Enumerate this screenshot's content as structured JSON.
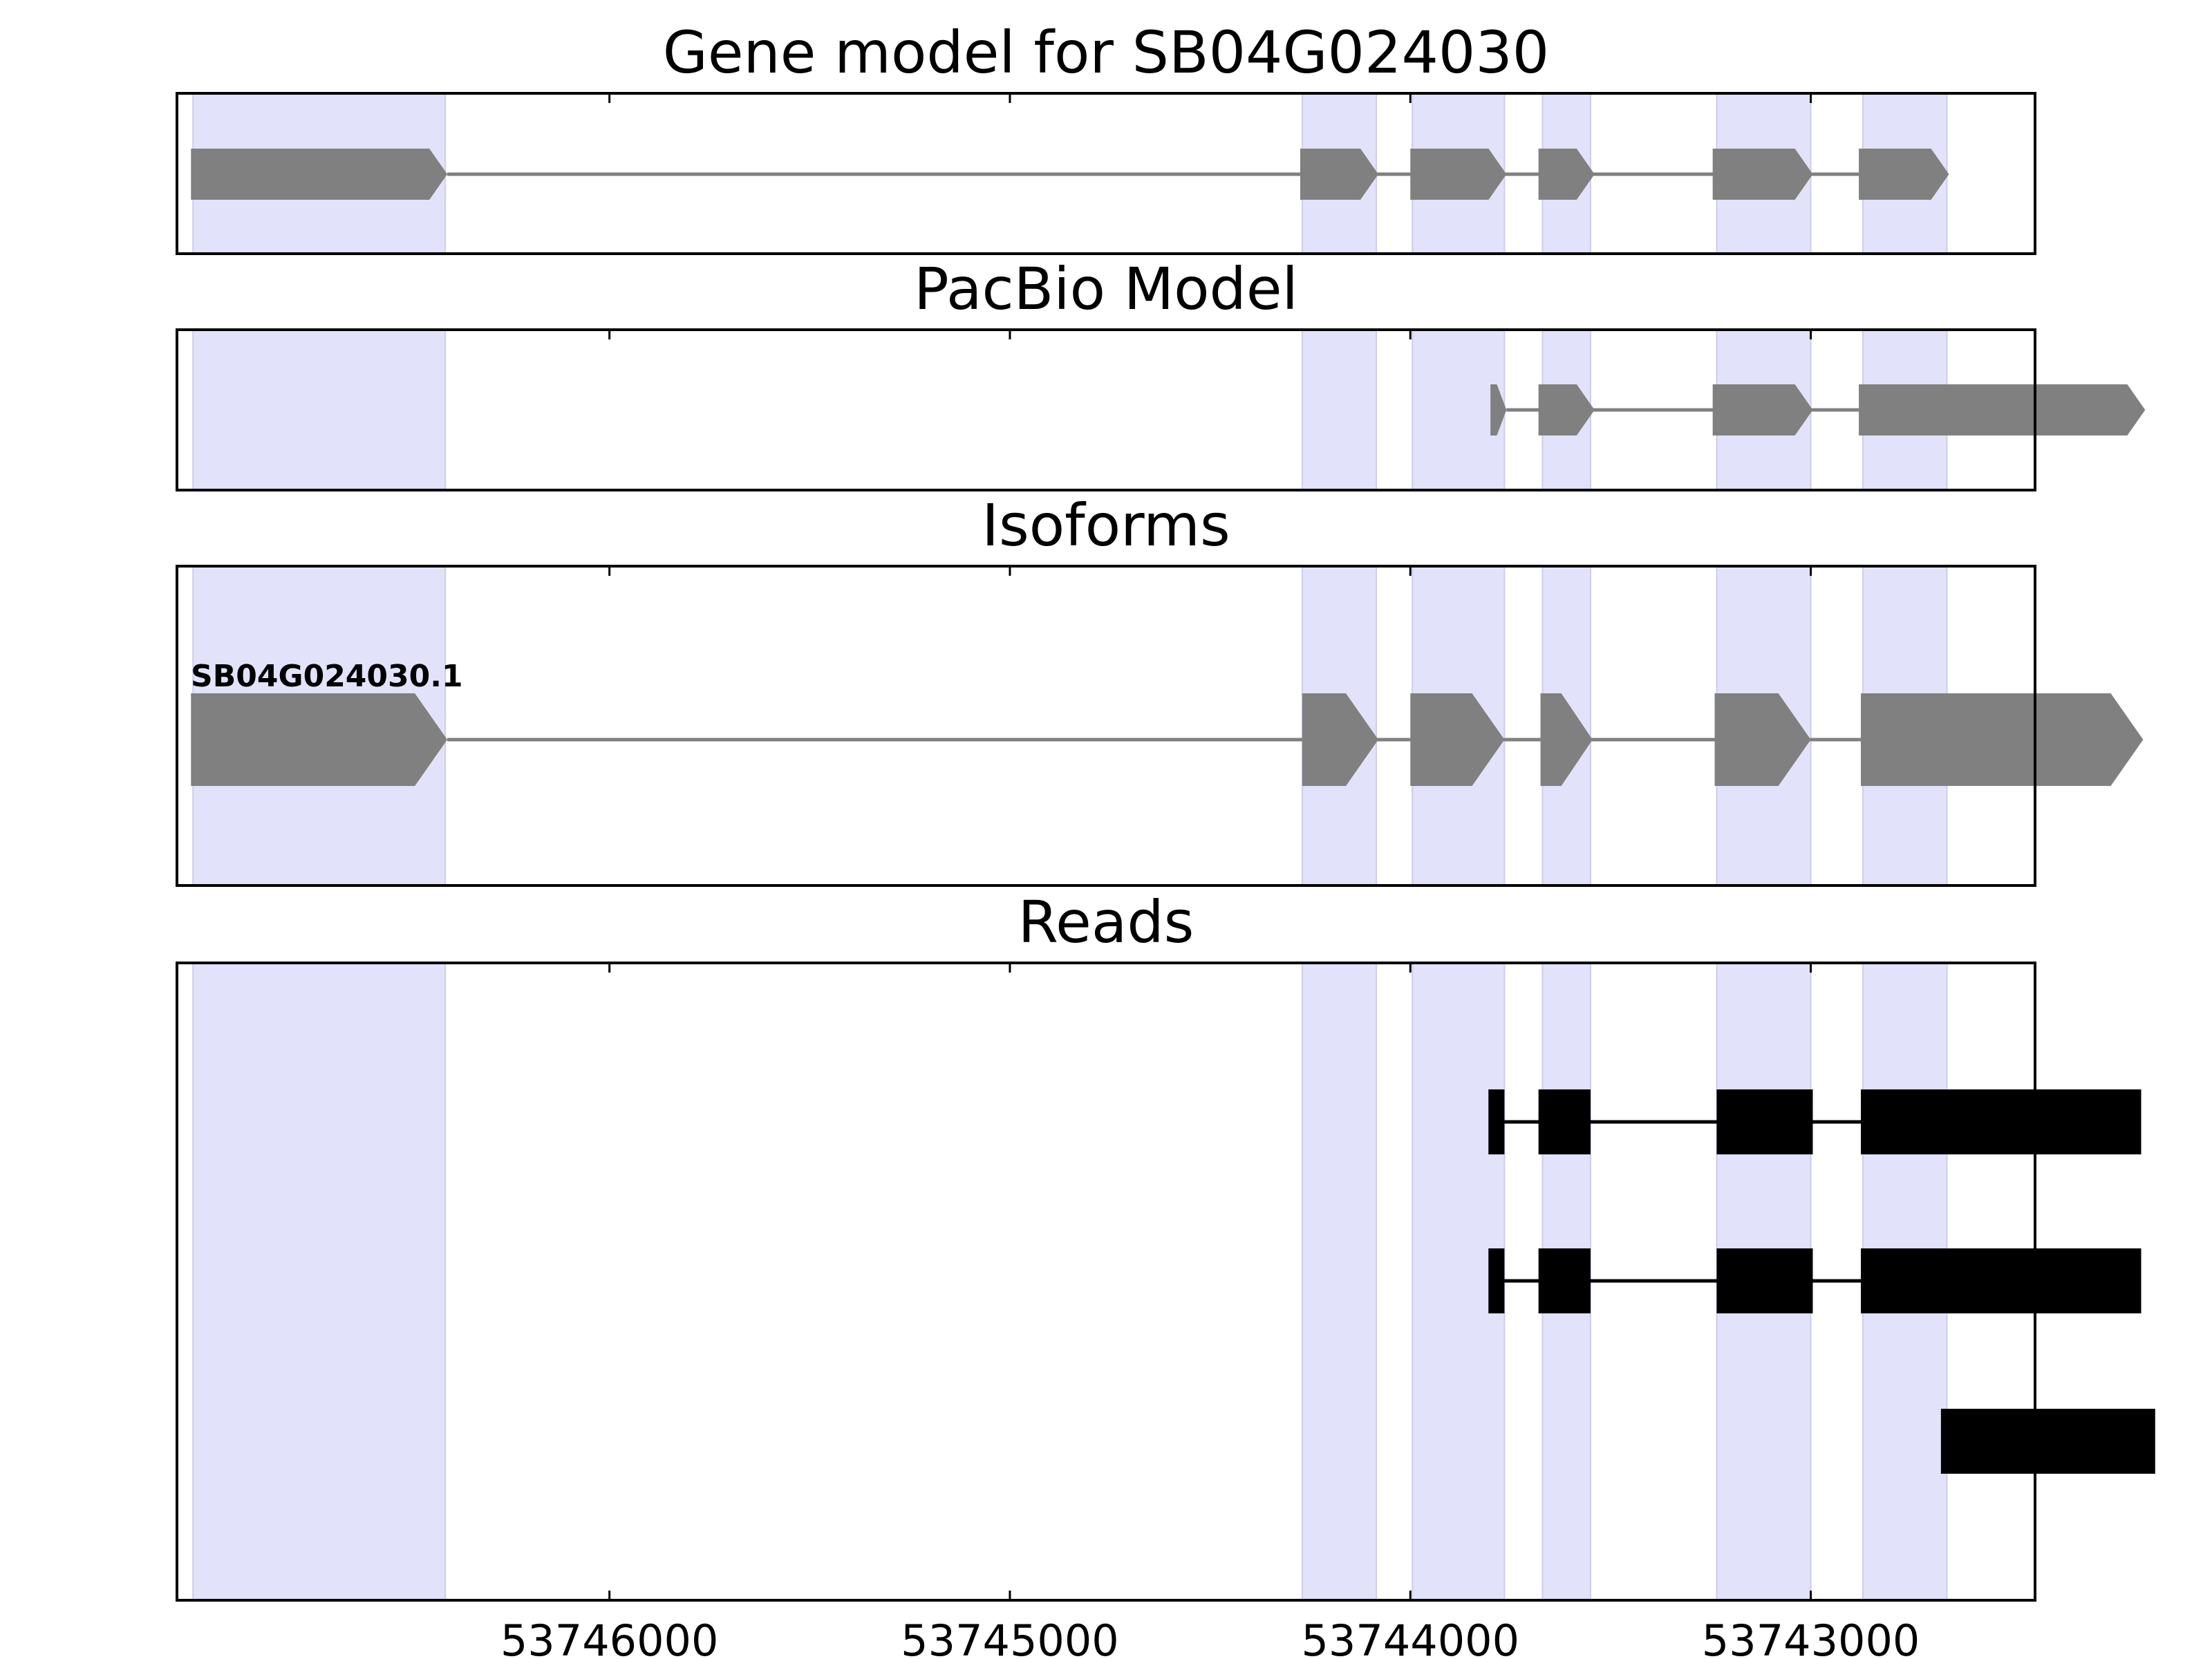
{
  "chart_data": {
    "type": "gene-track",
    "x_axis": {
      "reversed": true,
      "xlim": [
        53747080,
        53742440
      ],
      "ticks": [
        53746000,
        53745000,
        53744000,
        53743000
      ],
      "tick_labels": [
        "53746000",
        "53745000",
        "53744000",
        "53743000"
      ]
    },
    "highlight_color": "#e2e2fb",
    "highlight_regions": [
      [
        53747040,
        53746410
      ],
      [
        53744270,
        53744085
      ],
      [
        53743995,
        53743765
      ],
      [
        53743670,
        53743550
      ],
      [
        53743235,
        53743000
      ],
      [
        53742870,
        53742660
      ]
    ],
    "panels": [
      {
        "id": "gene-model",
        "title": "Gene model for SB04G024030",
        "color": "#808080",
        "tracks": [
          {
            "label": "",
            "exons": [
              [
                53747045,
                53746405
              ],
              [
                53744275,
                53744080
              ],
              [
                53744000,
                53743760
              ],
              [
                53743680,
                53743540
              ],
              [
                53743245,
                53742995
              ],
              [
                53742880,
                53742655
              ]
            ]
          }
        ]
      },
      {
        "id": "pacbio-model",
        "title": "PacBio Model",
        "color": "#808080",
        "tracks": [
          {
            "label": "",
            "exons": [
              [
                53743800,
                53743760
              ],
              [
                53743680,
                53743540
              ],
              [
                53743245,
                53742995
              ],
              [
                53742880,
                53742165
              ]
            ]
          }
        ]
      },
      {
        "id": "isoforms",
        "title": "Isoforms",
        "color": "#808080",
        "tracks": [
          {
            "label": "SB04G024030.1",
            "exons": [
              [
                53747045,
                53746405
              ],
              [
                53744270,
                53744080
              ],
              [
                53744000,
                53743765
              ],
              [
                53743675,
                53743545
              ],
              [
                53743240,
                53743000
              ],
              [
                53742875,
                53742170
              ]
            ]
          }
        ]
      },
      {
        "id": "reads",
        "title": "Reads",
        "color": "#000000",
        "tracks": [
          {
            "label": "",
            "exons": [
              [
                53743805,
                53743765
              ],
              [
                53743680,
                53743550
              ],
              [
                53743235,
                53742995
              ],
              [
                53742875,
                53742175
              ]
            ]
          },
          {
            "label": "",
            "exons": [
              [
                53743805,
                53743765
              ],
              [
                53743680,
                53743550
              ],
              [
                53743235,
                53742995
              ],
              [
                53742875,
                53742175
              ]
            ]
          },
          {
            "label": "",
            "exons": [
              [
                53742675,
                53742140
              ]
            ]
          }
        ]
      }
    ]
  }
}
